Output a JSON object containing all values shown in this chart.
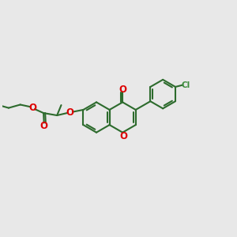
{
  "background_color": "#e8e8e8",
  "bond_color": "#2d6b2d",
  "oxygen_color": "#dd0000",
  "chlorine_color": "#3d8c3d",
  "line_width": 1.5,
  "figsize": [
    3.0,
    3.0
  ],
  "dpi": 100,
  "xlim": [
    0,
    10
  ],
  "ylim": [
    0,
    10
  ]
}
